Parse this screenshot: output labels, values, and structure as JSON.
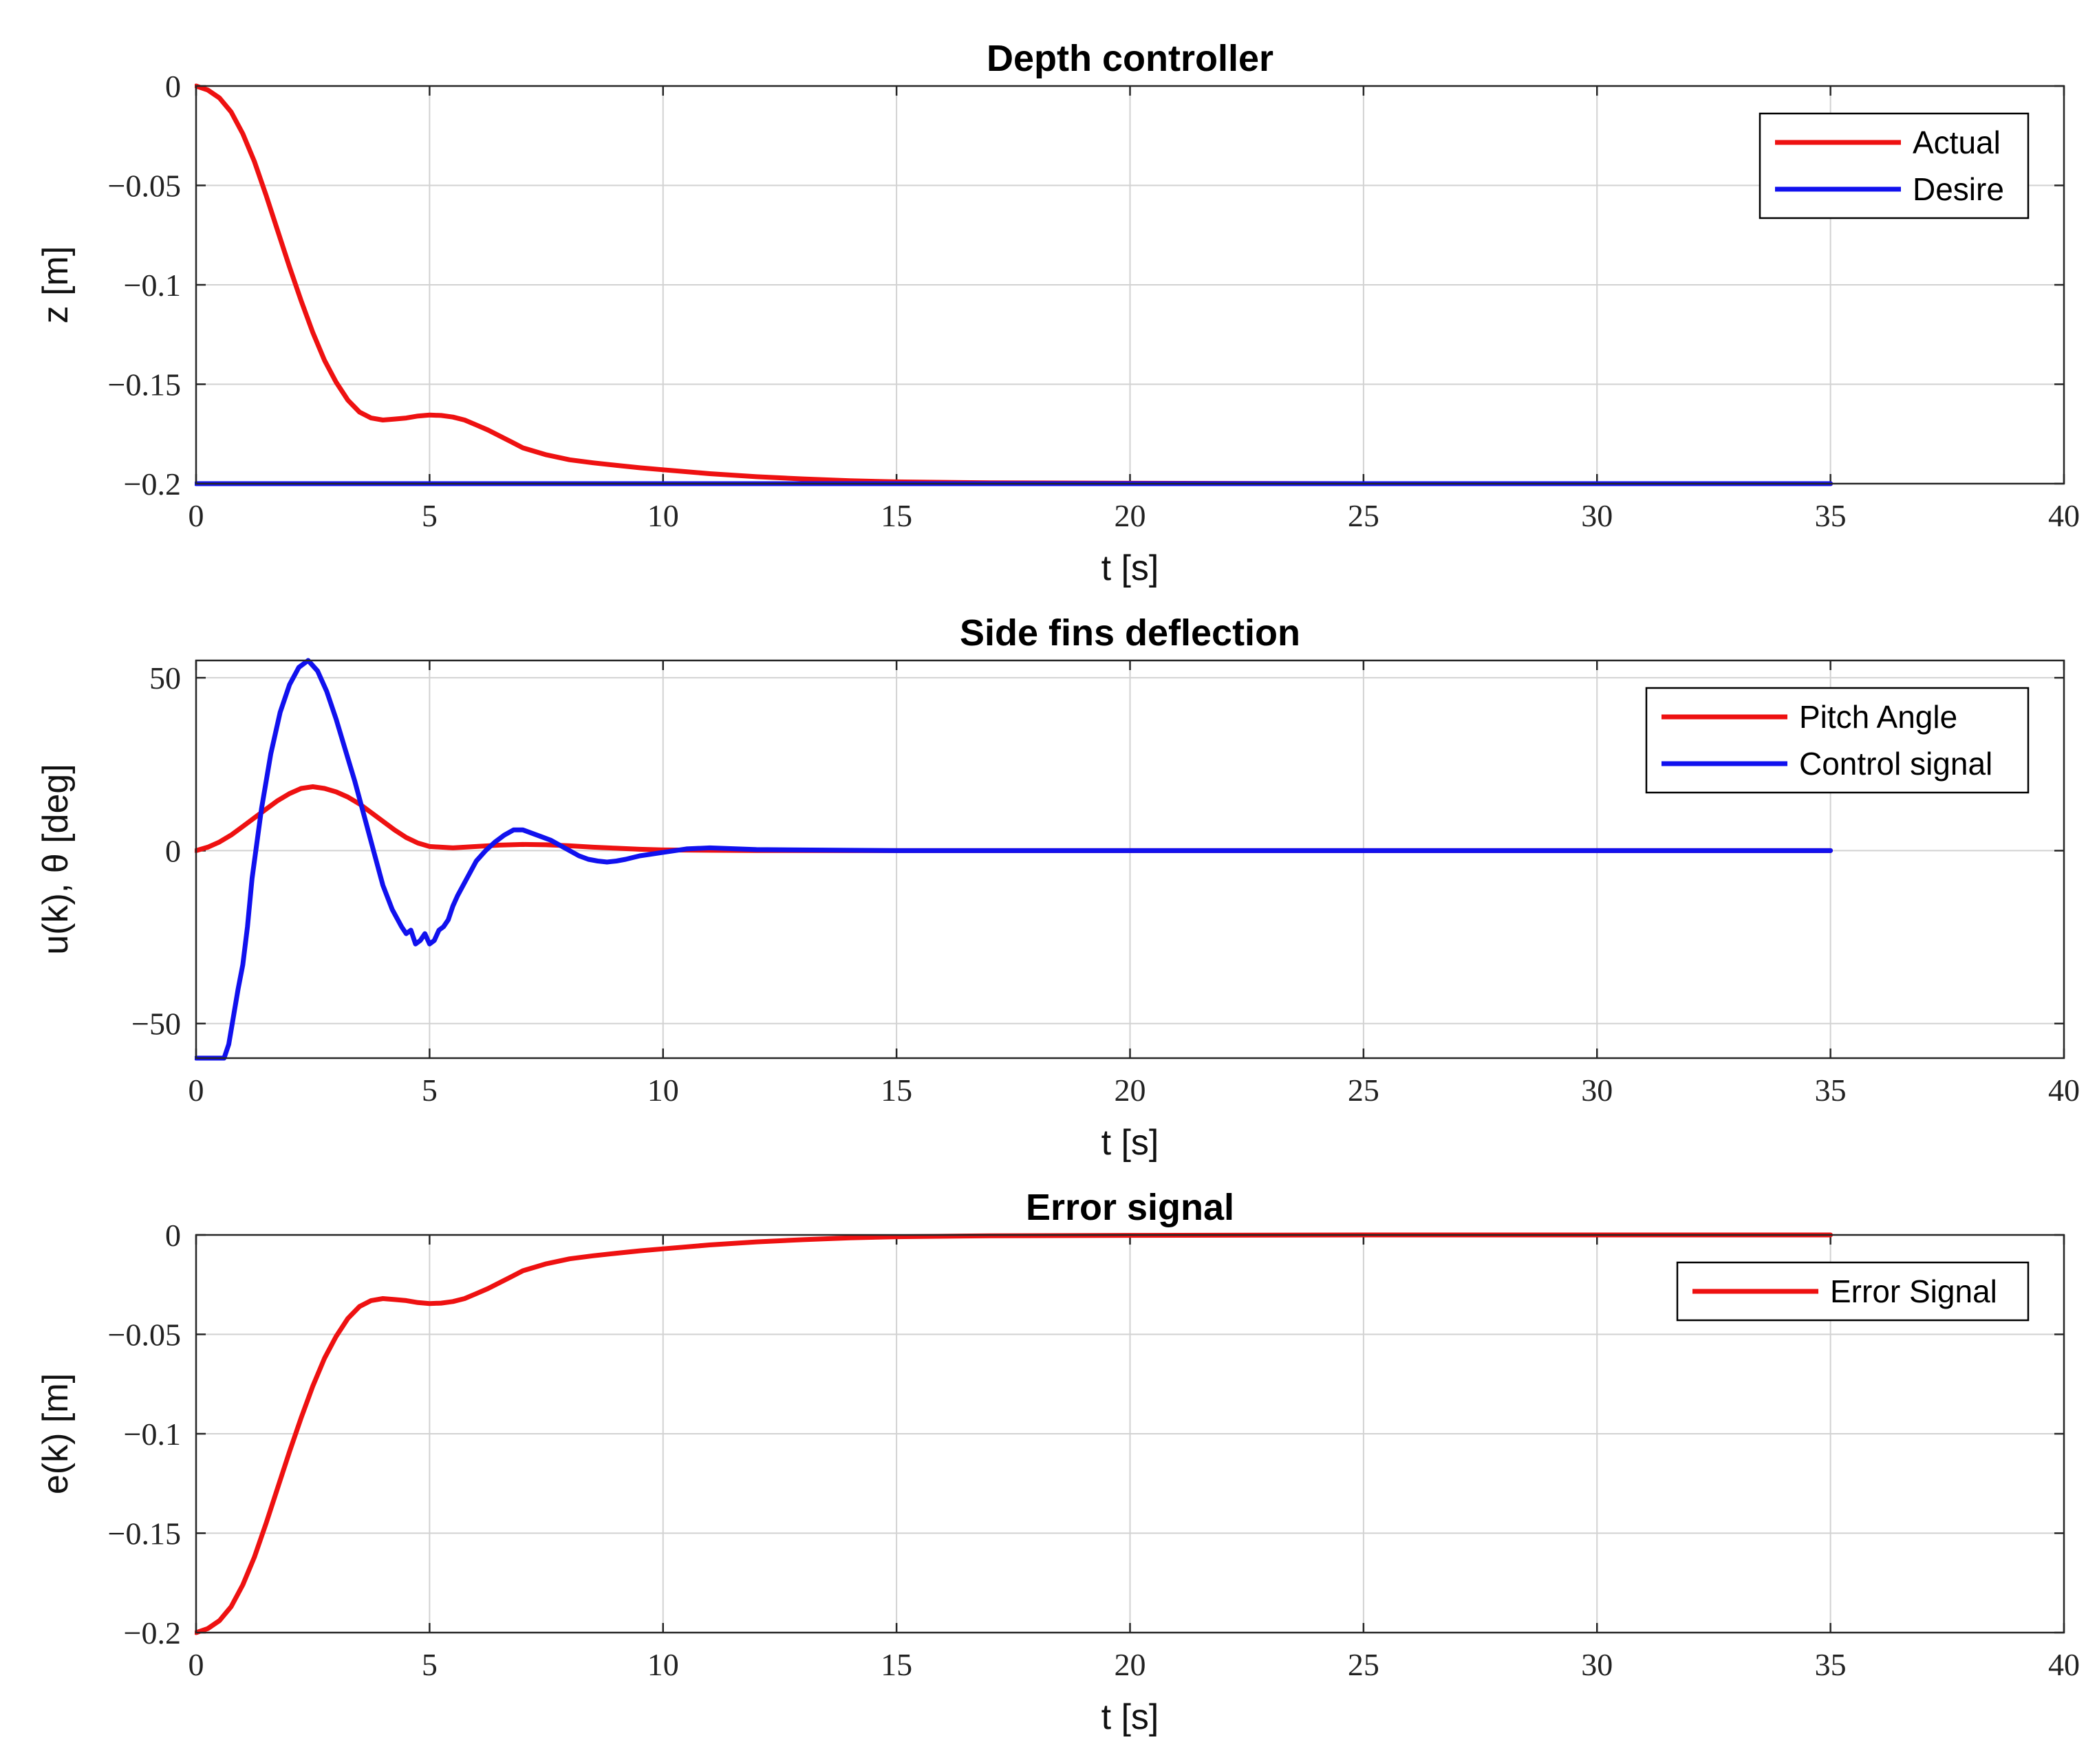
{
  "chart_data": [
    {
      "type": "line",
      "title": "Depth controller",
      "xlabel": "t [s]",
      "ylabel": "z [m]",
      "xlim": [
        0,
        40
      ],
      "ylim": [
        -0.2,
        0
      ],
      "xticks": [
        0,
        5,
        10,
        15,
        20,
        25,
        30,
        35,
        40
      ],
      "xtick_labels": [
        "0",
        "5",
        "10",
        "15",
        "20",
        "25",
        "30",
        "35",
        "40"
      ],
      "yticks": [
        0,
        -0.05,
        -0.1,
        -0.15,
        -0.2
      ],
      "ytick_labels": [
        "0",
        "−0.05",
        "−0.1",
        "−0.15",
        "−0.2"
      ],
      "grid": true,
      "legend_position": "top-right",
      "series": [
        {
          "name": "Actual",
          "color": "#ee1111",
          "x": [
            0,
            0.25,
            0.5,
            0.75,
            1.0,
            1.25,
            1.5,
            1.75,
            2.0,
            2.25,
            2.5,
            2.75,
            3.0,
            3.25,
            3.5,
            3.75,
            4.0,
            4.25,
            4.5,
            4.75,
            5.0,
            5.25,
            5.5,
            5.75,
            6.0,
            6.25,
            6.5,
            6.75,
            7.0,
            7.5,
            8.0,
            8.5,
            9.0,
            9.5,
            10.0,
            11.0,
            12.0,
            13.0,
            14.0,
            15.0,
            17.0,
            20.0,
            25.0,
            30.0,
            35.0
          ],
          "y": [
            0,
            -0.002,
            -0.006,
            -0.013,
            -0.024,
            -0.038,
            -0.055,
            -0.073,
            -0.091,
            -0.108,
            -0.124,
            -0.138,
            -0.149,
            -0.158,
            -0.164,
            -0.167,
            -0.168,
            -0.1675,
            -0.167,
            -0.166,
            -0.1655,
            -0.1657,
            -0.1665,
            -0.168,
            -0.1705,
            -0.173,
            -0.176,
            -0.179,
            -0.182,
            -0.1855,
            -0.188,
            -0.1895,
            -0.1908,
            -0.192,
            -0.193,
            -0.195,
            -0.1965,
            -0.1976,
            -0.1985,
            -0.1991,
            -0.1996,
            -0.1998,
            -0.2,
            -0.2,
            -0.2
          ]
        },
        {
          "name": "Desire",
          "color": "#1111ee",
          "x": [
            0,
            35
          ],
          "y": [
            -0.2,
            -0.2
          ]
        }
      ]
    },
    {
      "type": "line",
      "title": "Side fins deflection",
      "xlabel": "t [s]",
      "ylabel": "u(k), θ [deg]",
      "xlim": [
        0,
        40
      ],
      "ylim": [
        -60,
        55
      ],
      "xticks": [
        0,
        5,
        10,
        15,
        20,
        25,
        30,
        35,
        40
      ],
      "xtick_labels": [
        "0",
        "5",
        "10",
        "15",
        "20",
        "25",
        "30",
        "35",
        "40"
      ],
      "yticks": [
        50,
        0,
        -50
      ],
      "ytick_labels": [
        "50",
        "0",
        "−50"
      ],
      "grid": true,
      "legend_position": "top-right",
      "series": [
        {
          "name": "Pitch Angle",
          "color": "#ee1111",
          "x": [
            0,
            0.25,
            0.5,
            0.75,
            1.0,
            1.25,
            1.5,
            1.75,
            2.0,
            2.25,
            2.5,
            2.75,
            3.0,
            3.25,
            3.5,
            3.75,
            4.0,
            4.25,
            4.5,
            4.75,
            5.0,
            5.5,
            6.0,
            6.5,
            7.0,
            7.5,
            8.0,
            8.5,
            9.0,
            9.5,
            10.0,
            11.0,
            12.0,
            14.0,
            20.0,
            35.0
          ],
          "y": [
            0,
            1,
            2.5,
            4.5,
            7,
            9.5,
            12,
            14.5,
            16.5,
            18,
            18.5,
            18,
            17,
            15.5,
            13.5,
            11,
            8.5,
            6,
            3.8,
            2.2,
            1.2,
            0.8,
            1.2,
            1.6,
            1.8,
            1.7,
            1.4,
            1.0,
            0.7,
            0.4,
            0.2,
            0.1,
            0.05,
            0,
            0,
            0
          ]
        },
        {
          "name": "Control signal",
          "color": "#1111ee",
          "x": [
            0,
            0.3,
            0.6,
            0.7,
            0.8,
            0.9,
            1.0,
            1.1,
            1.2,
            1.4,
            1.6,
            1.8,
            2.0,
            2.2,
            2.4,
            2.6,
            2.8,
            3.0,
            3.2,
            3.4,
            3.6,
            3.8,
            4.0,
            4.2,
            4.4,
            4.5,
            4.6,
            4.7,
            4.8,
            4.9,
            5.0,
            5.1,
            5.2,
            5.3,
            5.4,
            5.5,
            5.6,
            5.8,
            6.0,
            6.2,
            6.4,
            6.6,
            6.8,
            7.0,
            7.2,
            7.4,
            7.6,
            7.8,
            8.0,
            8.2,
            8.4,
            8.6,
            8.8,
            9.0,
            9.2,
            9.5,
            10.0,
            10.5,
            11.0,
            12.0,
            15.0,
            20.0,
            35.0
          ],
          "y": [
            -60,
            -60,
            -60,
            -56,
            -48,
            -40,
            -33,
            -22,
            -8,
            12,
            28,
            40,
            48,
            53,
            55,
            52,
            46,
            38,
            29,
            20,
            10,
            0,
            -10,
            -17,
            -22,
            -24,
            -23,
            -27,
            -26,
            -24,
            -27,
            -26,
            -23,
            -22,
            -20,
            -16,
            -13,
            -8,
            -3,
            0,
            2.5,
            4.5,
            6,
            6,
            5,
            4,
            3,
            1.5,
            0,
            -1.5,
            -2.5,
            -3,
            -3.3,
            -3,
            -2.5,
            -1.5,
            -0.5,
            0.5,
            0.8,
            0.3,
            0,
            0,
            0
          ]
        }
      ]
    },
    {
      "type": "line",
      "title": "Error signal",
      "xlabel": "t [s]",
      "ylabel": "e(k) [m]",
      "xlim": [
        0,
        40
      ],
      "ylim": [
        -0.2,
        0
      ],
      "xticks": [
        0,
        5,
        10,
        15,
        20,
        25,
        30,
        35,
        40
      ],
      "xtick_labels": [
        "0",
        "5",
        "10",
        "15",
        "20",
        "25",
        "30",
        "35",
        "40"
      ],
      "yticks": [
        0,
        -0.05,
        -0.1,
        -0.15,
        -0.2
      ],
      "ytick_labels": [
        "0",
        "−0.05",
        "−0.1",
        "−0.15",
        "−0.2"
      ],
      "grid": true,
      "legend_position": "top-right",
      "series": [
        {
          "name": "Error Signal",
          "color": "#ee1111",
          "x": [
            0,
            0.25,
            0.5,
            0.75,
            1.0,
            1.25,
            1.5,
            1.75,
            2.0,
            2.25,
            2.5,
            2.75,
            3.0,
            3.25,
            3.5,
            3.75,
            4.0,
            4.25,
            4.5,
            4.75,
            5.0,
            5.25,
            5.5,
            5.75,
            6.0,
            6.25,
            6.5,
            6.75,
            7.0,
            7.5,
            8.0,
            8.5,
            9.0,
            9.5,
            10.0,
            11.0,
            12.0,
            13.0,
            14.0,
            15.0,
            17.0,
            20.0,
            25.0,
            30.0,
            35.0
          ],
          "y": [
            -0.2,
            -0.198,
            -0.194,
            -0.187,
            -0.176,
            -0.162,
            -0.145,
            -0.127,
            -0.109,
            -0.092,
            -0.076,
            -0.062,
            -0.051,
            -0.042,
            -0.036,
            -0.033,
            -0.032,
            -0.0325,
            -0.033,
            -0.034,
            -0.0345,
            -0.0343,
            -0.0335,
            -0.032,
            -0.0295,
            -0.027,
            -0.024,
            -0.021,
            -0.018,
            -0.0145,
            -0.012,
            -0.0105,
            -0.0092,
            -0.008,
            -0.007,
            -0.005,
            -0.0035,
            -0.0024,
            -0.0015,
            -0.0009,
            -0.0004,
            -0.0002,
            0,
            0,
            0
          ]
        }
      ]
    }
  ]
}
